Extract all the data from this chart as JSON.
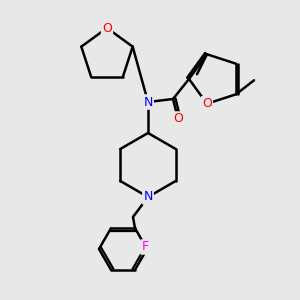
{
  "bg_color": "#e8e8e8",
  "atom_colors": {
    "O": "#ff0000",
    "N": "#0000ff",
    "F": "#ff00ff",
    "C": "#000000"
  },
  "bond_color": "#000000",
  "bond_width": 1.8,
  "font_size_atom": 9,
  "fig_size": [
    3.0,
    3.0
  ],
  "dpi": 100
}
